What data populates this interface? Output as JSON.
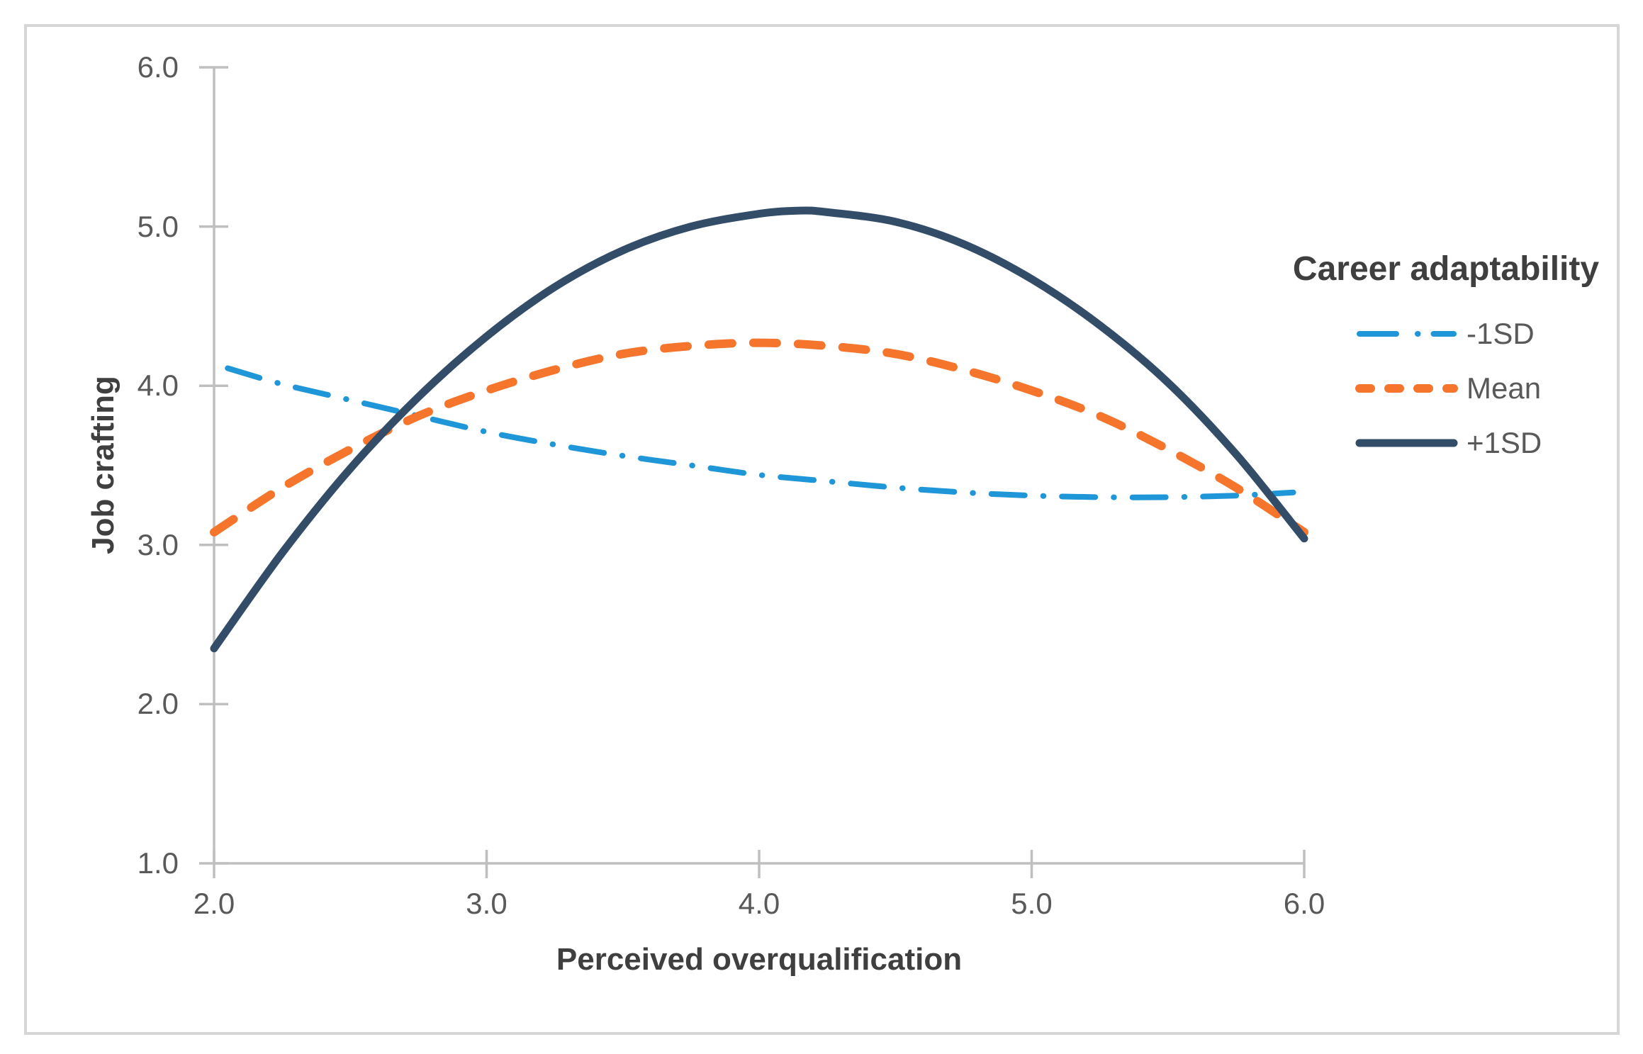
{
  "chart_data": {
    "type": "line",
    "title": "",
    "xlabel": "Perceived overqualification",
    "ylabel": "Job crafting",
    "xlim": [
      2.0,
      6.0
    ],
    "ylim": [
      1.0,
      6.0
    ],
    "x_ticks": [
      2.0,
      3.0,
      4.0,
      5.0,
      6.0
    ],
    "y_ticks": [
      1.0,
      2.0,
      3.0,
      4.0,
      5.0,
      6.0
    ],
    "grid": false,
    "legend_title": "Career adaptability",
    "legend_position": "right",
    "palette": {
      "axis_line": "#BFBFBF",
      "tick_label": "#595959",
      "title_text": "#3F3F3F",
      "frame_border": "#D6D6D6",
      "background": "#FFFFFF"
    },
    "series": [
      {
        "name": "-1SD",
        "color": "#1E96D8",
        "style": "dash-dot",
        "points": [
          [
            2.05,
            4.11
          ],
          [
            2.25,
            4.01
          ],
          [
            2.5,
            3.91
          ],
          [
            2.75,
            3.81
          ],
          [
            3.0,
            3.71
          ],
          [
            3.25,
            3.63
          ],
          [
            3.5,
            3.56
          ],
          [
            3.75,
            3.5
          ],
          [
            4.0,
            3.44
          ],
          [
            4.25,
            3.4
          ],
          [
            4.5,
            3.36
          ],
          [
            4.75,
            3.33
          ],
          [
            5.0,
            3.31
          ],
          [
            5.25,
            3.3
          ],
          [
            5.5,
            3.3
          ],
          [
            5.75,
            3.31
          ],
          [
            5.96,
            3.33
          ]
        ]
      },
      {
        "name": "Mean",
        "color": "#F5752C",
        "style": "dashed",
        "points": [
          [
            2.0,
            3.08
          ],
          [
            2.25,
            3.36
          ],
          [
            2.5,
            3.6
          ],
          [
            2.75,
            3.81
          ],
          [
            3.0,
            3.97
          ],
          [
            3.25,
            4.1
          ],
          [
            3.5,
            4.2
          ],
          [
            3.75,
            4.25
          ],
          [
            4.0,
            4.27
          ],
          [
            4.25,
            4.25
          ],
          [
            4.5,
            4.2
          ],
          [
            4.75,
            4.1
          ],
          [
            5.0,
            3.97
          ],
          [
            5.25,
            3.81
          ],
          [
            5.5,
            3.6
          ],
          [
            5.75,
            3.36
          ],
          [
            6.0,
            3.08
          ]
        ]
      },
      {
        "name": "+1SD",
        "color": "#334D68",
        "style": "solid",
        "points": [
          [
            2.0,
            2.35
          ],
          [
            2.25,
            2.95
          ],
          [
            2.5,
            3.48
          ],
          [
            2.75,
            3.93
          ],
          [
            3.0,
            4.31
          ],
          [
            3.25,
            4.62
          ],
          [
            3.5,
            4.85
          ],
          [
            3.75,
            5.0
          ],
          [
            4.0,
            5.08
          ],
          [
            4.15,
            5.1
          ],
          [
            4.25,
            5.09
          ],
          [
            4.5,
            5.03
          ],
          [
            4.75,
            4.89
          ],
          [
            5.0,
            4.67
          ],
          [
            5.25,
            4.38
          ],
          [
            5.5,
            4.02
          ],
          [
            5.75,
            3.57
          ],
          [
            6.0,
            3.04
          ]
        ]
      }
    ]
  }
}
